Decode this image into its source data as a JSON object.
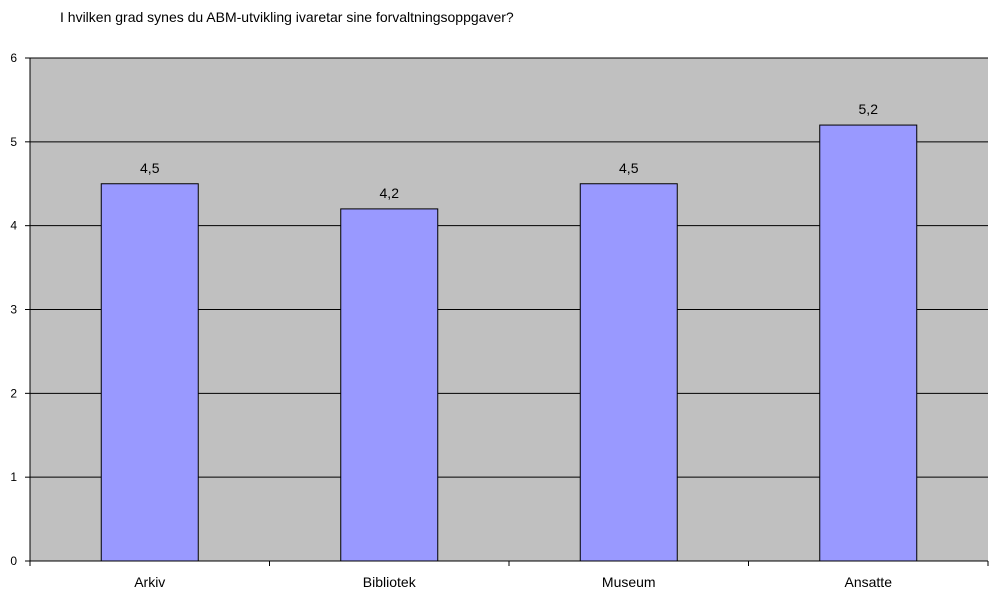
{
  "chart_data": {
    "type": "bar",
    "title": "I hvilken grad synes du ABM-utvikling ivaretar sine forvaltningsoppgaver?",
    "categories": [
      "Arkiv",
      "Bibliotek",
      "Museum",
      "Ansatte"
    ],
    "values": [
      4.5,
      4.2,
      4.5,
      5.2
    ],
    "value_labels": [
      "4,5",
      "4,2",
      "4,5",
      "5,2"
    ],
    "y_ticks": [
      "0",
      "1",
      "2",
      "3",
      "4",
      "5",
      "6"
    ],
    "ylim": [
      0,
      6
    ],
    "xlabel": "",
    "ylabel": "",
    "grid": true,
    "legend": "none",
    "colors": {
      "bar_fill": "#9999ff",
      "bar_stroke": "#000000",
      "plot_background": "#c0c0c0",
      "gridline": "#000000"
    }
  }
}
